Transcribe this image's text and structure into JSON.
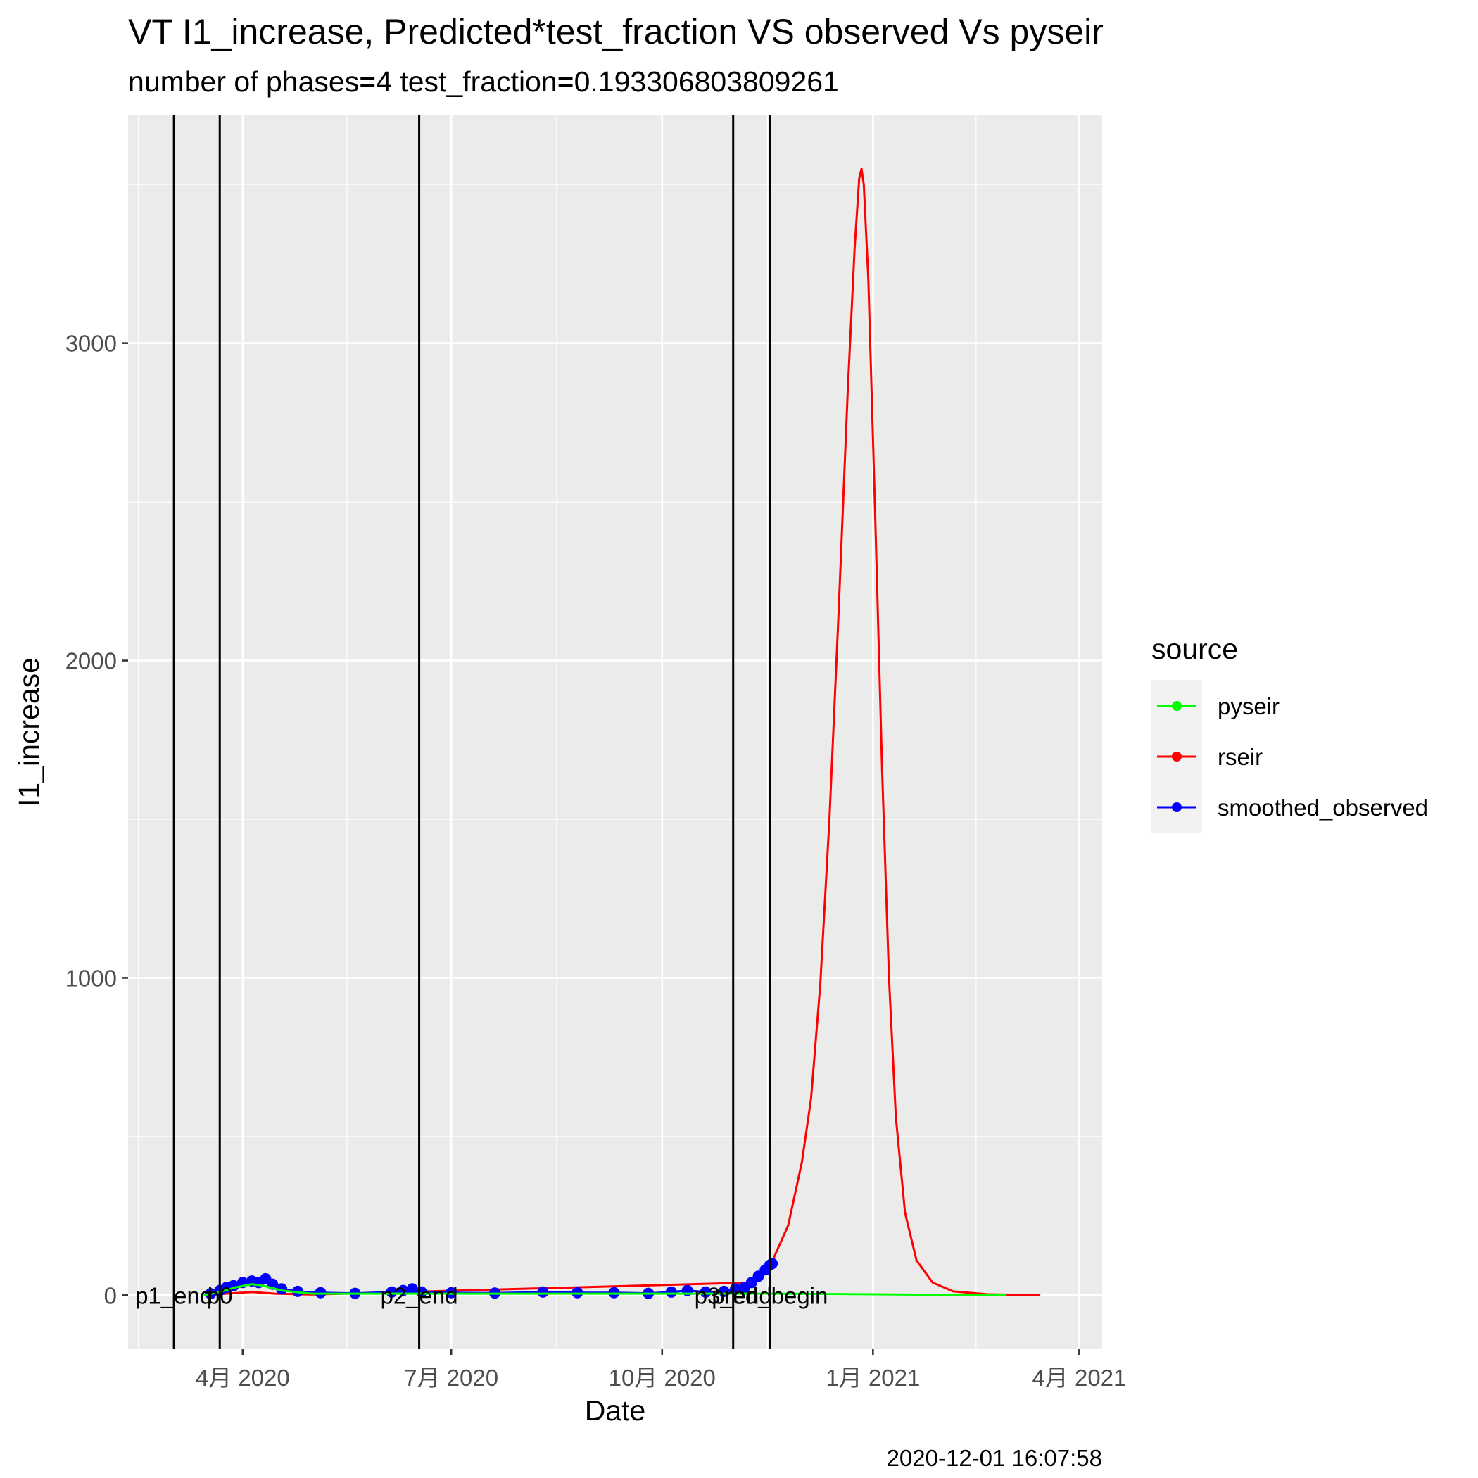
{
  "chart_data": {
    "type": "line",
    "title": "VT I1_increase, Predicted*test_fraction VS observed Vs pyseir",
    "subtitle": "number of phases=4   test_fraction=0.193306803809261",
    "xlabel": "Date",
    "ylabel": "I1_increase",
    "caption": "2020-12-01 16:07:58",
    "x_axis": {
      "type": "date",
      "range": [
        "2020-02-11",
        "2021-04-11"
      ],
      "ticks": [
        {
          "date": "2020-04-01",
          "label": "4月 2020"
        },
        {
          "date": "2020-07-01",
          "label": "7月 2020"
        },
        {
          "date": "2020-10-01",
          "label": "10月 2020"
        },
        {
          "date": "2021-01-01",
          "label": "1月 2021"
        },
        {
          "date": "2021-04-01",
          "label": "4月 2021"
        }
      ]
    },
    "y_axis": {
      "range": [
        -170,
        3720
      ],
      "ticks": [
        0,
        1000,
        2000,
        3000
      ]
    },
    "grid": true,
    "panel_background": "#ebebeb",
    "legend": {
      "title": "source",
      "position": "right",
      "entries": [
        {
          "label": "pyseir",
          "color": "#00ff00"
        },
        {
          "label": "rseir",
          "color": "#ff0000"
        },
        {
          "label": "smoothed_observed",
          "color": "#0000ff"
        }
      ]
    },
    "phase_lines": [
      {
        "date": "2020-03-02",
        "label": "p1_end"
      },
      {
        "date": "2020-03-22",
        "label": "p0"
      },
      {
        "date": "2020-06-17",
        "label": "p2_end"
      },
      {
        "date": "2020-11-01",
        "label": "p3_end"
      },
      {
        "date": "2020-11-17",
        "label": "pred_begin"
      }
    ],
    "series": [
      {
        "name": "rseir",
        "color": "#ff0000",
        "points": [
          [
            "2020-03-15",
            0
          ],
          [
            "2020-03-25",
            5
          ],
          [
            "2020-04-05",
            10
          ],
          [
            "2020-04-15",
            5
          ],
          [
            "2020-05-01",
            2
          ],
          [
            "2020-11-10",
            40
          ],
          [
            "2020-11-17",
            90
          ],
          [
            "2020-11-25",
            220
          ],
          [
            "2020-12-01",
            420
          ],
          [
            "2020-12-05",
            620
          ],
          [
            "2020-12-09",
            980
          ],
          [
            "2020-12-13",
            1500
          ],
          [
            "2020-12-17",
            2150
          ],
          [
            "2020-12-21",
            2850
          ],
          [
            "2020-12-24",
            3300
          ],
          [
            "2020-12-26",
            3520
          ],
          [
            "2020-12-27",
            3550
          ],
          [
            "2020-12-28",
            3500
          ],
          [
            "2020-12-30",
            3200
          ],
          [
            "2021-01-02",
            2450
          ],
          [
            "2021-01-05",
            1650
          ],
          [
            "2021-01-08",
            1000
          ],
          [
            "2021-01-11",
            560
          ],
          [
            "2021-01-15",
            260
          ],
          [
            "2021-01-20",
            110
          ],
          [
            "2021-01-27",
            40
          ],
          [
            "2021-02-05",
            12
          ],
          [
            "2021-02-20",
            3
          ],
          [
            "2021-03-15",
            0
          ]
        ]
      },
      {
        "name": "pyseir",
        "color": "#00ff00",
        "points": [
          [
            "2020-03-15",
            0
          ],
          [
            "2020-03-22",
            10
          ],
          [
            "2020-03-29",
            25
          ],
          [
            "2020-04-05",
            35
          ],
          [
            "2020-04-10",
            30
          ],
          [
            "2020-04-18",
            15
          ],
          [
            "2020-05-01",
            5
          ],
          [
            "2020-06-01",
            5
          ],
          [
            "2020-08-01",
            5
          ],
          [
            "2020-10-01",
            5
          ],
          [
            "2020-11-17",
            5
          ],
          [
            "2020-12-31",
            3
          ],
          [
            "2021-02-28",
            0
          ]
        ]
      },
      {
        "name": "smoothed_observed",
        "color": "#0000ff",
        "points": [
          [
            "2020-03-18",
            5
          ],
          [
            "2020-03-22",
            15
          ],
          [
            "2020-03-25",
            25
          ],
          [
            "2020-03-28",
            30
          ],
          [
            "2020-04-01",
            40
          ],
          [
            "2020-04-05",
            45
          ],
          [
            "2020-04-08",
            40
          ],
          [
            "2020-04-11",
            52
          ],
          [
            "2020-04-14",
            35
          ],
          [
            "2020-04-18",
            20
          ],
          [
            "2020-04-25",
            12
          ],
          [
            "2020-05-05",
            8
          ],
          [
            "2020-05-20",
            6
          ],
          [
            "2020-06-05",
            10
          ],
          [
            "2020-06-10",
            15
          ],
          [
            "2020-06-14",
            20
          ],
          [
            "2020-06-18",
            10
          ],
          [
            "2020-07-01",
            8
          ],
          [
            "2020-07-20",
            7
          ],
          [
            "2020-08-10",
            10
          ],
          [
            "2020-08-25",
            8
          ],
          [
            "2020-09-10",
            8
          ],
          [
            "2020-09-25",
            6
          ],
          [
            "2020-10-05",
            10
          ],
          [
            "2020-10-12",
            15
          ],
          [
            "2020-10-20",
            10
          ],
          [
            "2020-10-28",
            12
          ],
          [
            "2020-11-02",
            20
          ],
          [
            "2020-11-06",
            25
          ],
          [
            "2020-11-09",
            40
          ],
          [
            "2020-11-12",
            60
          ],
          [
            "2020-11-15",
            80
          ],
          [
            "2020-11-17",
            95
          ],
          [
            "2020-11-18",
            100
          ]
        ]
      }
    ]
  }
}
